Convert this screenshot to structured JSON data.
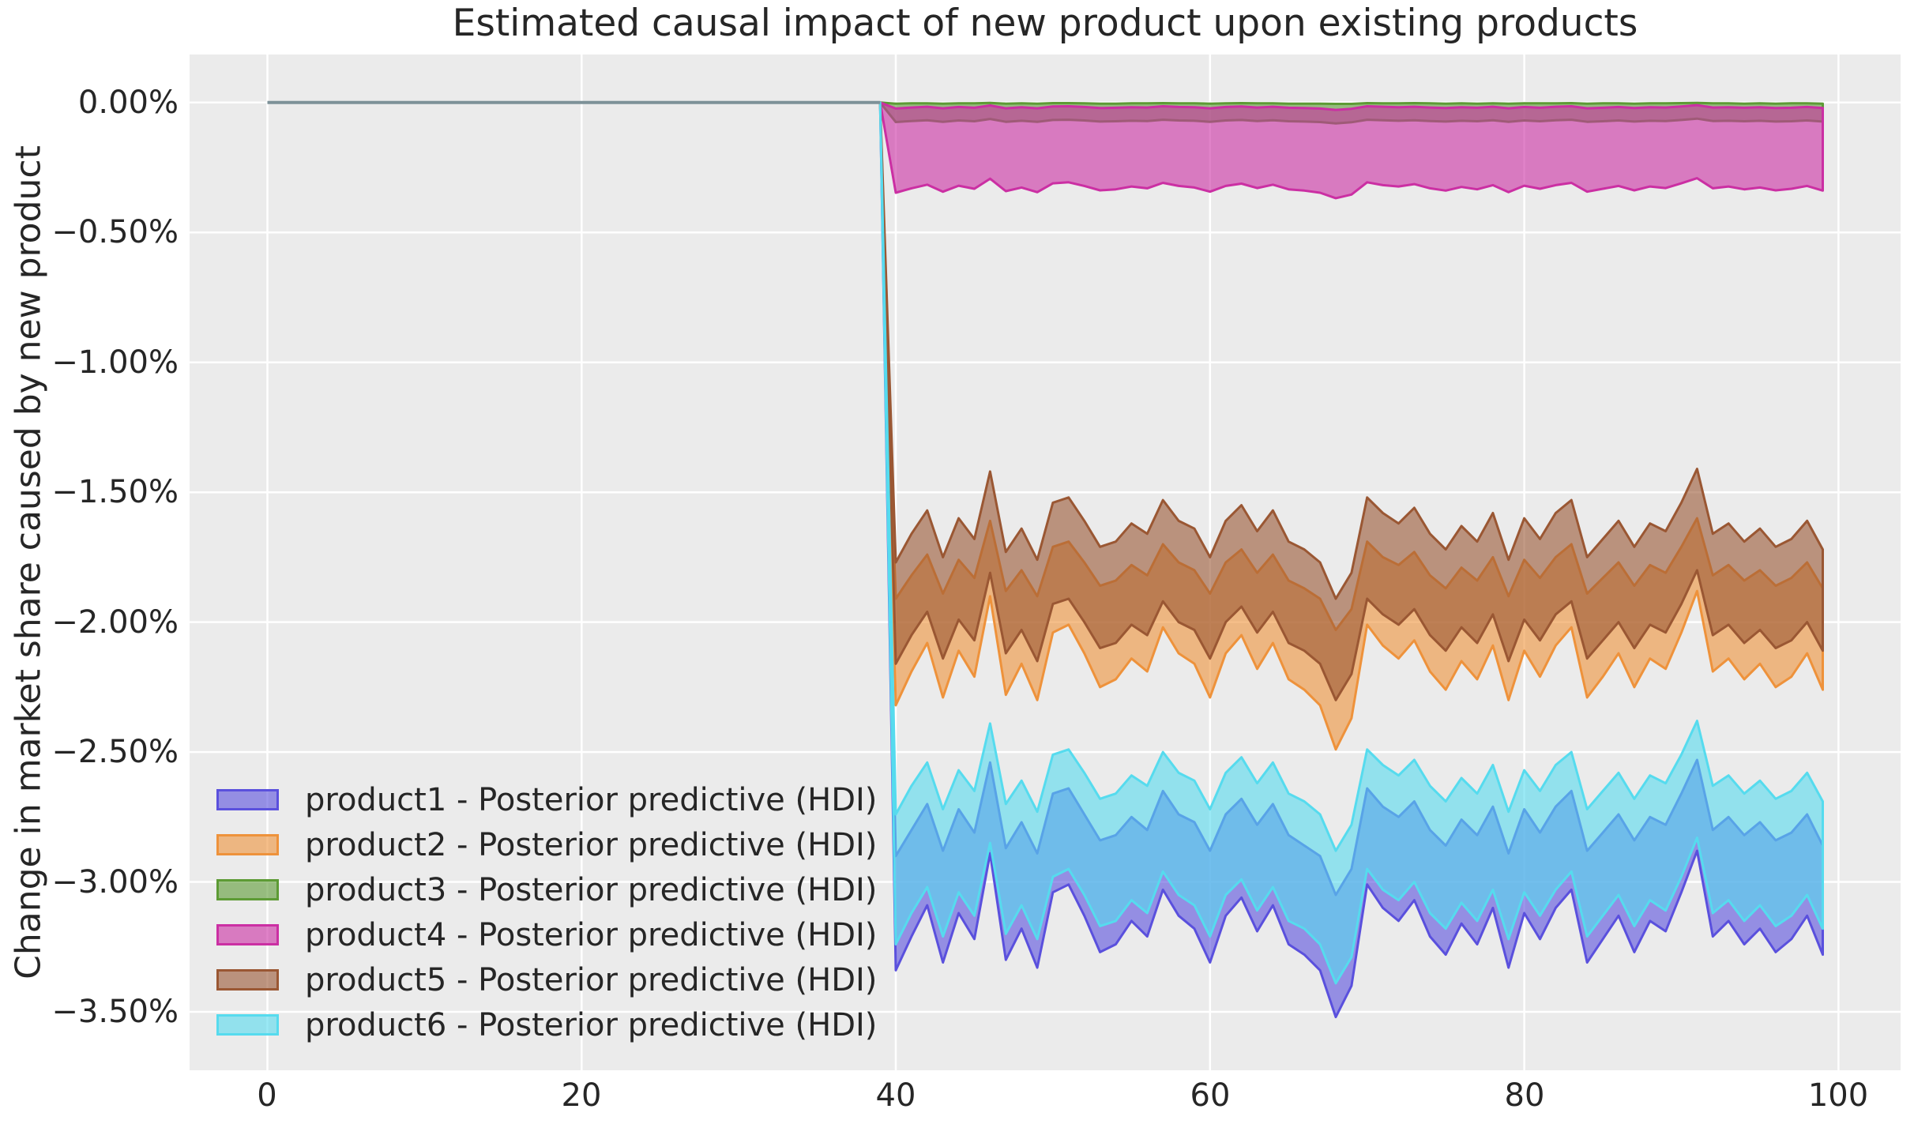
{
  "title": "Estimated causal impact of new product upon existing products",
  "y_axis": {
    "label": "Change in market share caused by new product",
    "ticks": [
      "0.00%",
      "−0.50%",
      "−1.00%",
      "−1.50%",
      "−2.00%",
      "−2.50%",
      "−3.00%",
      "−3.50%"
    ],
    "tick_values": [
      0,
      -0.5,
      -1.0,
      -1.5,
      -2.0,
      -2.5,
      -3.0,
      -3.5
    ]
  },
  "x_axis": {
    "ticks": [
      "0",
      "20",
      "40",
      "60",
      "80",
      "100"
    ],
    "tick_values": [
      0,
      20,
      40,
      60,
      80,
      100
    ]
  },
  "colors": {
    "figure_background": "#ffffff",
    "plot_background": "#ebebeb",
    "grid": "#ffffff",
    "text": "#262626",
    "pre_period_line": "#7d9198"
  },
  "chart_data": {
    "type": "area",
    "title": "Estimated causal impact of new product upon existing products",
    "xlabel": "",
    "ylabel": "Change in market share caused by new product",
    "xlim": [
      -4.95,
      103.95
    ],
    "ylim": [
      0.185,
      -3.725
    ],
    "grid": true,
    "legend_position": "lower left",
    "fill_alpha": 0.6,
    "units": "percent",
    "pre_period": {
      "x_start": 0,
      "x_end": 39,
      "value": 0,
      "color": "#7d9198"
    },
    "intervention_x": 40,
    "x": [
      39,
      40,
      41,
      42,
      43,
      44,
      45,
      46,
      47,
      48,
      49,
      50,
      51,
      52,
      53,
      54,
      55,
      56,
      57,
      58,
      59,
      60,
      61,
      62,
      63,
      64,
      65,
      66,
      67,
      68,
      69,
      70,
      71,
      72,
      73,
      74,
      75,
      76,
      77,
      78,
      79,
      80,
      81,
      82,
      83,
      84,
      85,
      86,
      87,
      88,
      89,
      90,
      91,
      92,
      93,
      94,
      95,
      96,
      97,
      98,
      99
    ],
    "series": [
      {
        "name": "product1 - Posterior predictive (HDI)",
        "color": "#5a50dd",
        "upper": [
          0.0,
          -2.9,
          -2.8,
          -2.7,
          -2.88,
          -2.72,
          -2.81,
          -2.54,
          -2.87,
          -2.77,
          -2.89,
          -2.66,
          -2.64,
          -2.74,
          -2.84,
          -2.82,
          -2.75,
          -2.8,
          -2.65,
          -2.74,
          -2.77,
          -2.88,
          -2.74,
          -2.68,
          -2.78,
          -2.7,
          -2.82,
          -2.86,
          -2.9,
          -3.05,
          -2.95,
          -2.64,
          -2.71,
          -2.75,
          -2.69,
          -2.8,
          -2.86,
          -2.76,
          -2.82,
          -2.71,
          -2.89,
          -2.72,
          -2.81,
          -2.71,
          -2.65,
          -2.88,
          -2.81,
          -2.74,
          -2.84,
          -2.75,
          -2.78,
          -2.66,
          -2.53,
          -2.8,
          -2.75,
          -2.82,
          -2.77,
          -2.84,
          -2.81,
          -2.74,
          -2.86
        ],
        "lower": [
          0.0,
          -3.34,
          -3.21,
          -3.09,
          -3.31,
          -3.12,
          -3.22,
          -2.89,
          -3.3,
          -3.18,
          -3.33,
          -3.04,
          -3.01,
          -3.13,
          -3.27,
          -3.24,
          -3.15,
          -3.21,
          -3.03,
          -3.13,
          -3.18,
          -3.31,
          -3.13,
          -3.06,
          -3.19,
          -3.09,
          -3.24,
          -3.28,
          -3.34,
          -3.52,
          -3.4,
          -3.01,
          -3.1,
          -3.15,
          -3.07,
          -3.21,
          -3.28,
          -3.16,
          -3.24,
          -3.1,
          -3.33,
          -3.12,
          -3.22,
          -3.1,
          -3.03,
          -3.31,
          -3.22,
          -3.13,
          -3.27,
          -3.15,
          -3.19,
          -3.04,
          -2.88,
          -3.21,
          -3.15,
          -3.24,
          -3.18,
          -3.27,
          -3.22,
          -3.13,
          -3.28
        ]
      },
      {
        "name": "product2 - Posterior predictive (HDI)",
        "color": "#ee923b",
        "upper": [
          0.0,
          -1.91,
          -1.82,
          -1.74,
          -1.89,
          -1.76,
          -1.83,
          -1.61,
          -1.88,
          -1.8,
          -1.9,
          -1.71,
          -1.69,
          -1.77,
          -1.86,
          -1.84,
          -1.78,
          -1.82,
          -1.7,
          -1.77,
          -1.8,
          -1.89,
          -1.77,
          -1.72,
          -1.81,
          -1.74,
          -1.84,
          -1.87,
          -1.91,
          -2.03,
          -1.95,
          -1.69,
          -1.75,
          -1.78,
          -1.73,
          -1.82,
          -1.87,
          -1.79,
          -1.84,
          -1.75,
          -1.9,
          -1.76,
          -1.83,
          -1.75,
          -1.7,
          -1.89,
          -1.83,
          -1.77,
          -1.86,
          -1.78,
          -1.81,
          -1.71,
          -1.6,
          -1.82,
          -1.78,
          -1.84,
          -1.8,
          -1.86,
          -1.83,
          -1.77,
          -1.87
        ],
        "lower": [
          0.0,
          -2.32,
          -2.19,
          -2.08,
          -2.29,
          -2.11,
          -2.21,
          -1.9,
          -2.28,
          -2.16,
          -2.3,
          -2.04,
          -2.01,
          -2.12,
          -2.25,
          -2.22,
          -2.14,
          -2.19,
          -2.02,
          -2.12,
          -2.16,
          -2.29,
          -2.12,
          -2.05,
          -2.18,
          -2.08,
          -2.22,
          -2.26,
          -2.32,
          -2.49,
          -2.37,
          -2.01,
          -2.09,
          -2.14,
          -2.07,
          -2.19,
          -2.26,
          -2.15,
          -2.22,
          -2.09,
          -2.3,
          -2.11,
          -2.21,
          -2.09,
          -2.02,
          -2.29,
          -2.21,
          -2.12,
          -2.25,
          -2.14,
          -2.18,
          -2.04,
          -1.88,
          -2.19,
          -2.14,
          -2.22,
          -2.16,
          -2.25,
          -2.21,
          -2.12,
          -2.26
        ]
      },
      {
        "name": "product3 - Posterior predictive (HDI)",
        "color": "#5d9b35",
        "upper": [
          0.0,
          -0.004,
          -0.003,
          -0.003,
          -0.004,
          -0.003,
          -0.003,
          -0.001,
          -0.004,
          -0.003,
          -0.004,
          -0.002,
          -0.002,
          -0.003,
          -0.004,
          -0.004,
          -0.003,
          -0.003,
          -0.002,
          -0.003,
          -0.003,
          -0.004,
          -0.003,
          -0.002,
          -0.003,
          -0.003,
          -0.004,
          -0.004,
          -0.004,
          -0.005,
          -0.005,
          -0.002,
          -0.003,
          -0.003,
          -0.002,
          -0.003,
          -0.004,
          -0.003,
          -0.004,
          -0.003,
          -0.004,
          -0.003,
          -0.003,
          -0.003,
          -0.002,
          -0.004,
          -0.003,
          -0.003,
          -0.004,
          -0.003,
          -0.003,
          -0.002,
          -0.001,
          -0.003,
          -0.003,
          -0.004,
          -0.003,
          -0.004,
          -0.003,
          -0.003,
          -0.004
        ],
        "lower": [
          0.0,
          -0.075,
          -0.071,
          -0.068,
          -0.074,
          -0.069,
          -0.072,
          -0.063,
          -0.074,
          -0.07,
          -0.074,
          -0.067,
          -0.066,
          -0.069,
          -0.073,
          -0.072,
          -0.07,
          -0.071,
          -0.066,
          -0.069,
          -0.07,
          -0.074,
          -0.069,
          -0.067,
          -0.071,
          -0.068,
          -0.072,
          -0.073,
          -0.075,
          -0.08,
          -0.076,
          -0.066,
          -0.068,
          -0.07,
          -0.068,
          -0.071,
          -0.073,
          -0.07,
          -0.072,
          -0.068,
          -0.074,
          -0.069,
          -0.072,
          -0.068,
          -0.066,
          -0.074,
          -0.072,
          -0.069,
          -0.073,
          -0.07,
          -0.071,
          -0.067,
          -0.062,
          -0.071,
          -0.07,
          -0.072,
          -0.07,
          -0.073,
          -0.072,
          -0.069,
          -0.073
        ]
      },
      {
        "name": "product4 - Posterior predictive (HDI)",
        "color": "#cb2fa3",
        "upper": [
          0.0,
          -0.023,
          -0.019,
          -0.016,
          -0.022,
          -0.017,
          -0.02,
          -0.011,
          -0.022,
          -0.018,
          -0.022,
          -0.015,
          -0.014,
          -0.017,
          -0.021,
          -0.02,
          -0.018,
          -0.019,
          -0.014,
          -0.017,
          -0.018,
          -0.022,
          -0.017,
          -0.015,
          -0.019,
          -0.016,
          -0.02,
          -0.021,
          -0.023,
          -0.028,
          -0.024,
          -0.014,
          -0.016,
          -0.018,
          -0.016,
          -0.019,
          -0.021,
          -0.018,
          -0.02,
          -0.016,
          -0.022,
          -0.017,
          -0.02,
          -0.016,
          -0.014,
          -0.022,
          -0.02,
          -0.017,
          -0.021,
          -0.018,
          -0.019,
          -0.015,
          -0.01,
          -0.019,
          -0.018,
          -0.02,
          -0.018,
          -0.021,
          -0.02,
          -0.017,
          -0.021
        ],
        "lower": [
          0.0,
          -0.347,
          -0.33,
          -0.316,
          -0.343,
          -0.32,
          -0.332,
          -0.293,
          -0.341,
          -0.327,
          -0.345,
          -0.311,
          -0.307,
          -0.321,
          -0.338,
          -0.334,
          -0.323,
          -0.33,
          -0.309,
          -0.321,
          -0.327,
          -0.343,
          -0.321,
          -0.312,
          -0.329,
          -0.316,
          -0.334,
          -0.339,
          -0.347,
          -0.368,
          -0.354,
          -0.307,
          -0.318,
          -0.323,
          -0.314,
          -0.33,
          -0.339,
          -0.325,
          -0.334,
          -0.318,
          -0.345,
          -0.32,
          -0.332,
          -0.318,
          -0.309,
          -0.343,
          -0.332,
          -0.321,
          -0.338,
          -0.323,
          -0.329,
          -0.311,
          -0.291,
          -0.33,
          -0.323,
          -0.334,
          -0.327,
          -0.338,
          -0.332,
          -0.321,
          -0.339
        ]
      },
      {
        "name": "product5 - Posterior predictive (HDI)",
        "color": "#9a5733",
        "upper": [
          0.0,
          -1.77,
          -1.66,
          -1.57,
          -1.75,
          -1.6,
          -1.68,
          -1.42,
          -1.73,
          -1.64,
          -1.76,
          -1.54,
          -1.52,
          -1.61,
          -1.71,
          -1.69,
          -1.62,
          -1.66,
          -1.53,
          -1.61,
          -1.64,
          -1.75,
          -1.61,
          -1.55,
          -1.65,
          -1.57,
          -1.69,
          -1.72,
          -1.77,
          -1.91,
          -1.81,
          -1.52,
          -1.58,
          -1.62,
          -1.56,
          -1.66,
          -1.72,
          -1.63,
          -1.69,
          -1.58,
          -1.76,
          -1.6,
          -1.68,
          -1.58,
          -1.53,
          -1.75,
          -1.68,
          -1.61,
          -1.71,
          -1.62,
          -1.65,
          -1.54,
          -1.41,
          -1.66,
          -1.62,
          -1.69,
          -1.64,
          -1.71,
          -1.68,
          -1.61,
          -1.72
        ],
        "lower": [
          0.0,
          -2.16,
          -2.05,
          -1.96,
          -2.14,
          -1.99,
          -2.07,
          -1.81,
          -2.12,
          -2.03,
          -2.15,
          -1.93,
          -1.91,
          -2.0,
          -2.1,
          -2.08,
          -2.01,
          -2.05,
          -1.92,
          -2.0,
          -2.03,
          -2.14,
          -2.0,
          -1.94,
          -2.04,
          -1.96,
          -2.08,
          -2.11,
          -2.16,
          -2.3,
          -2.2,
          -1.91,
          -1.97,
          -2.01,
          -1.95,
          -2.05,
          -2.11,
          -2.02,
          -2.08,
          -1.97,
          -2.15,
          -1.99,
          -2.07,
          -1.97,
          -1.92,
          -2.14,
          -2.07,
          -2.0,
          -2.1,
          -2.01,
          -2.04,
          -1.93,
          -1.8,
          -2.05,
          -2.01,
          -2.08,
          -2.03,
          -2.1,
          -2.07,
          -2.0,
          -2.11
        ]
      },
      {
        "name": "product6 - Posterior predictive (HDI)",
        "color": "#56dbee",
        "upper": [
          0.0,
          -2.74,
          -2.63,
          -2.54,
          -2.72,
          -2.57,
          -2.65,
          -2.39,
          -2.7,
          -2.61,
          -2.73,
          -2.51,
          -2.49,
          -2.58,
          -2.68,
          -2.66,
          -2.59,
          -2.63,
          -2.5,
          -2.58,
          -2.61,
          -2.72,
          -2.58,
          -2.52,
          -2.62,
          -2.54,
          -2.66,
          -2.69,
          -2.74,
          -2.88,
          -2.78,
          -2.49,
          -2.55,
          -2.59,
          -2.53,
          -2.63,
          -2.69,
          -2.6,
          -2.66,
          -2.55,
          -2.73,
          -2.57,
          -2.65,
          -2.55,
          -2.5,
          -2.72,
          -2.65,
          -2.58,
          -2.68,
          -2.59,
          -2.62,
          -2.51,
          -2.38,
          -2.63,
          -2.59,
          -2.66,
          -2.61,
          -2.68,
          -2.65,
          -2.58,
          -2.69
        ],
        "lower": [
          0.0,
          -3.24,
          -3.12,
          -3.02,
          -3.21,
          -3.04,
          -3.13,
          -2.85,
          -3.2,
          -3.09,
          -3.22,
          -2.98,
          -2.95,
          -3.05,
          -3.17,
          -3.15,
          -3.07,
          -3.12,
          -2.96,
          -3.05,
          -3.09,
          -3.21,
          -3.05,
          -2.99,
          -3.11,
          -3.02,
          -3.15,
          -3.18,
          -3.24,
          -3.39,
          -3.29,
          -2.95,
          -3.03,
          -3.07,
          -3.0,
          -3.12,
          -3.18,
          -3.08,
          -3.15,
          -3.03,
          -3.22,
          -3.04,
          -3.13,
          -3.03,
          -2.96,
          -3.21,
          -3.13,
          -3.05,
          -3.17,
          -3.07,
          -3.11,
          -2.98,
          -2.83,
          -3.12,
          -3.07,
          -3.15,
          -3.09,
          -3.17,
          -3.13,
          -3.05,
          -3.18
        ]
      }
    ]
  }
}
